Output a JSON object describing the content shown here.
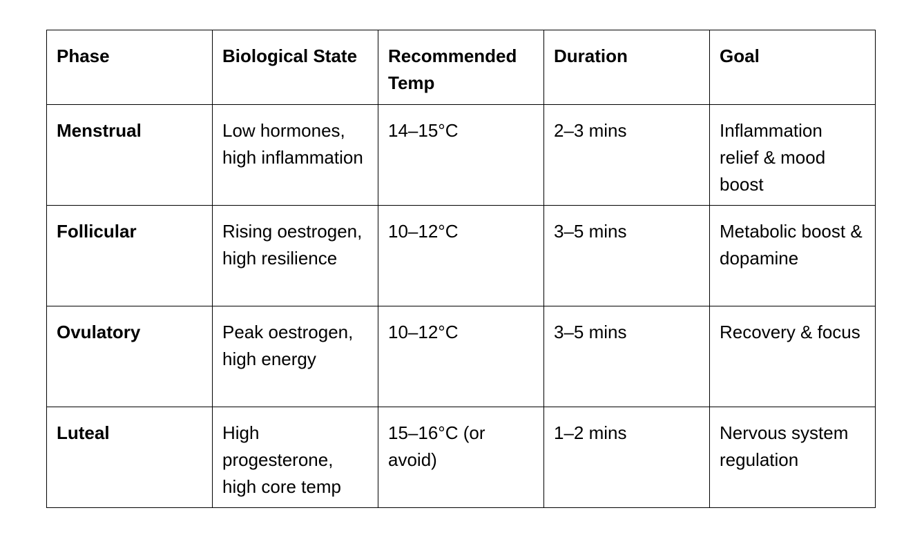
{
  "table": {
    "header": [
      "Phase",
      "Biological State",
      "Recommended Temp",
      "Duration",
      "Goal"
    ],
    "rows": [
      [
        "Menstrual",
        "Low hormones, high inflammation",
        "14–15°C",
        "2–3 mins",
        "Inflammation relief & mood boost"
      ],
      [
        "Follicular",
        "Rising oestrogen, high resilience",
        "10–12°C",
        "3–5 mins",
        "Metabolic boost & dopamine"
      ],
      [
        "Ovulatory",
        "Peak oestrogen, high energy",
        "10–12°C",
        "3–5 mins",
        "Recovery & focus"
      ],
      [
        "Luteal",
        "High progesterone, high core temp",
        "15–16°C (or avoid)",
        "1–2 mins",
        "Nervous system regulation"
      ]
    ]
  }
}
